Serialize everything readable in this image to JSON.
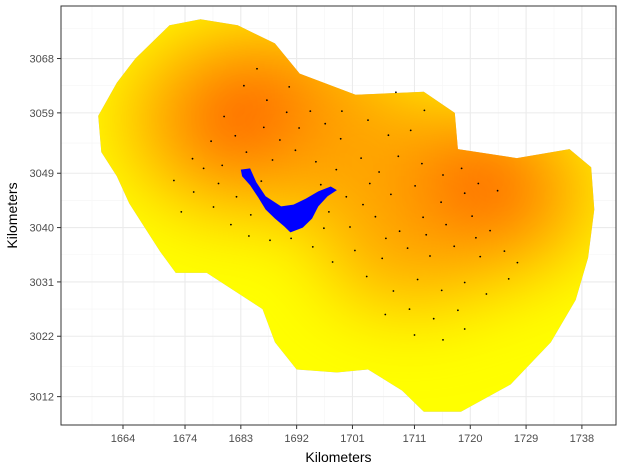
{
  "chart_data": {
    "type": "heatmap",
    "title": "",
    "xlabel": "Kilometers",
    "ylabel": "Kilometers",
    "xlim": [
      1654.0,
      1743.5
    ],
    "ylim": [
      3007.3,
      3076.7
    ],
    "x_ticks": [
      1664,
      1674,
      1683,
      1692,
      1701,
      1711,
      1720,
      1729,
      1738
    ],
    "y_ticks": [
      3012,
      3022,
      3031,
      3040,
      3049,
      3059,
      3068
    ],
    "x_tick_labels": [
      "1664",
      "1674",
      "1683",
      "1692",
      "1701",
      "1711",
      "1720",
      "1729",
      "1738"
    ],
    "y_tick_labels": [
      "3012",
      "3022",
      "3031",
      "3040",
      "3049",
      "3059",
      "3068"
    ],
    "grid": true,
    "legend": "none",
    "colors": {
      "panel_border": "#333333",
      "grid_major": "#ebebeb",
      "grid_minor": "#f5f5f5",
      "region_fill": "#bebebe",
      "lake_fill": "#0000ff",
      "points": "#000000",
      "scale_low": "#ffff00",
      "scale_mid": "#ffa500",
      "scale_high": "#ff0000"
    },
    "density_scale": [
      "#ffff00",
      "#ffd200",
      "#ffa500",
      "#ff6a00",
      "#ff0000"
    ],
    "hotspots": [
      {
        "x": 1686.5,
        "y": 3058.0,
        "level": 1.0
      },
      {
        "x": 1719.0,
        "y": 3046.0,
        "level": 0.95
      },
      {
        "x": 1701.0,
        "y": 3053.0,
        "level": 0.55
      },
      {
        "x": 1710.0,
        "y": 3036.0,
        "level": 0.5
      }
    ],
    "region_outline": [
      [
        1668.5,
        3070.5
      ],
      [
        1671.5,
        3073.5
      ],
      [
        1676.5,
        3074.5
      ],
      [
        1682.5,
        3073.5
      ],
      [
        1688.5,
        3070.5
      ],
      [
        1692.5,
        3065.5
      ],
      [
        1701.5,
        3062.0
      ],
      [
        1712.5,
        3062.5
      ],
      [
        1717.5,
        3059.0
      ],
      [
        1718.0,
        3053.0
      ],
      [
        1727.5,
        3051.5
      ],
      [
        1736.0,
        3053.0
      ],
      [
        1739.5,
        3050.0
      ],
      [
        1740.0,
        3043.0
      ],
      [
        1739.0,
        3035.0
      ],
      [
        1737.0,
        3028.0
      ],
      [
        1733.0,
        3021.0
      ],
      [
        1726.5,
        3014.0
      ],
      [
        1718.5,
        3009.5
      ],
      [
        1712.5,
        3009.5
      ],
      [
        1709.0,
        3013.0
      ],
      [
        1703.5,
        3016.5
      ],
      [
        1698.5,
        3016.0
      ],
      [
        1692.0,
        3016.5
      ],
      [
        1688.5,
        3021.0
      ],
      [
        1686.5,
        3026.5
      ],
      [
        1682.0,
        3029.5
      ],
      [
        1677.5,
        3032.5
      ],
      [
        1672.5,
        3032.5
      ],
      [
        1670.0,
        3036.0
      ],
      [
        1667.5,
        3040.0
      ],
      [
        1665.0,
        3044.0
      ],
      [
        1663.0,
        3048.5
      ],
      [
        1660.5,
        3052.5
      ],
      [
        1660.0,
        3058.5
      ],
      [
        1663.0,
        3064.0
      ],
      [
        1666.0,
        3068.0
      ]
    ],
    "lake_outline": [
      [
        1683.0,
        3049.6
      ],
      [
        1684.5,
        3049.8
      ],
      [
        1685.5,
        3047.5
      ],
      [
        1687.0,
        3045.2
      ],
      [
        1689.5,
        3043.5
      ],
      [
        1691.5,
        3043.8
      ],
      [
        1693.5,
        3044.8
      ],
      [
        1695.5,
        3046.0
      ],
      [
        1697.5,
        3046.8
      ],
      [
        1698.5,
        3046.2
      ],
      [
        1697.0,
        3045.2
      ],
      [
        1695.5,
        3043.5
      ],
      [
        1694.5,
        3041.5
      ],
      [
        1693.0,
        3040.0
      ],
      [
        1691.0,
        3039.2
      ],
      [
        1690.0,
        3040.2
      ],
      [
        1688.5,
        3041.5
      ],
      [
        1687.0,
        3043.0
      ],
      [
        1685.8,
        3045.0
      ],
      [
        1684.5,
        3047.0
      ],
      [
        1683.2,
        3048.5
      ]
    ],
    "points": [
      [
        1683.5,
        3063.5
      ],
      [
        1685.6,
        3066.3
      ],
      [
        1687.2,
        3061.1
      ],
      [
        1690.8,
        3063.3
      ],
      [
        1694.2,
        3059.3
      ],
      [
        1680.3,
        3058.4
      ],
      [
        1682.1,
        3055.2
      ],
      [
        1686.7,
        3056.6
      ],
      [
        1689.3,
        3054.5
      ],
      [
        1692.4,
        3056.5
      ],
      [
        1696.6,
        3057.2
      ],
      [
        1699.1,
        3054.7
      ],
      [
        1703.5,
        3057.8
      ],
      [
        1706.8,
        3055.3
      ],
      [
        1710.4,
        3056.1
      ],
      [
        1678.2,
        3054.3
      ],
      [
        1675.2,
        3051.4
      ],
      [
        1680.0,
        3050.3
      ],
      [
        1683.9,
        3052.5
      ],
      [
        1688.1,
        3051.2
      ],
      [
        1691.8,
        3052.8
      ],
      [
        1695.1,
        3050.9
      ],
      [
        1698.4,
        3049.6
      ],
      [
        1702.4,
        3051.5
      ],
      [
        1705.3,
        3049.2
      ],
      [
        1708.4,
        3051.8
      ],
      [
        1712.2,
        3050.6
      ],
      [
        1715.6,
        3048.7
      ],
      [
        1718.6,
        3049.8
      ],
      [
        1721.3,
        3047.3
      ],
      [
        1724.4,
        3046.1
      ],
      [
        1719.1,
        3045.7
      ],
      [
        1715.3,
        3044.2
      ],
      [
        1711.1,
        3046.9
      ],
      [
        1707.2,
        3045.5
      ],
      [
        1703.8,
        3047.3
      ],
      [
        1700.0,
        3045.1
      ],
      [
        1697.2,
        3042.6
      ],
      [
        1700.6,
        3040.1
      ],
      [
        1704.7,
        3041.8
      ],
      [
        1708.6,
        3039.4
      ],
      [
        1712.4,
        3041.7
      ],
      [
        1716.1,
        3040.5
      ],
      [
        1720.3,
        3041.9
      ],
      [
        1723.2,
        3039.5
      ],
      [
        1725.5,
        3036.1
      ],
      [
        1721.6,
        3035.2
      ],
      [
        1717.4,
        3036.9
      ],
      [
        1713.5,
        3035.3
      ],
      [
        1709.9,
        3036.6
      ],
      [
        1705.8,
        3034.9
      ],
      [
        1701.4,
        3036.2
      ],
      [
        1697.8,
        3034.3
      ],
      [
        1694.6,
        3036.8
      ],
      [
        1691.1,
        3038.2
      ],
      [
        1687.7,
        3037.9
      ],
      [
        1684.3,
        3038.6
      ],
      [
        1681.4,
        3040.5
      ],
      [
        1678.6,
        3043.4
      ],
      [
        1675.4,
        3045.9
      ],
      [
        1672.2,
        3047.8
      ],
      [
        1679.4,
        3047.3
      ],
      [
        1682.3,
        3045.1
      ],
      [
        1684.6,
        3042.1
      ],
      [
        1703.3,
        3031.9
      ],
      [
        1707.6,
        3029.5
      ],
      [
        1711.5,
        3031.4
      ],
      [
        1715.4,
        3029.6
      ],
      [
        1719.1,
        3030.9
      ],
      [
        1722.6,
        3029.0
      ],
      [
        1726.2,
        3031.5
      ],
      [
        1727.6,
        3034.2
      ],
      [
        1718.0,
        3026.3
      ],
      [
        1714.1,
        3024.9
      ],
      [
        1710.2,
        3026.5
      ],
      [
        1706.3,
        3025.6
      ],
      [
        1711.0,
        3022.2
      ],
      [
        1715.6,
        3021.4
      ],
      [
        1719.1,
        3023.2
      ],
      [
        1708.0,
        3062.4
      ],
      [
        1712.6,
        3059.4
      ],
      [
        1686.3,
        3047.7
      ],
      [
        1695.9,
        3047.1
      ],
      [
        1702.7,
        3043.8
      ],
      [
        1712.9,
        3038.8
      ],
      [
        1720.9,
        3038.3
      ],
      [
        1696.4,
        3039.9
      ],
      [
        1706.4,
        3038.2
      ],
      [
        1699.3,
        3059.3
      ],
      [
        1690.4,
        3059.1
      ],
      [
        1677.0,
        3049.8
      ],
      [
        1673.4,
        3042.6
      ]
    ]
  }
}
